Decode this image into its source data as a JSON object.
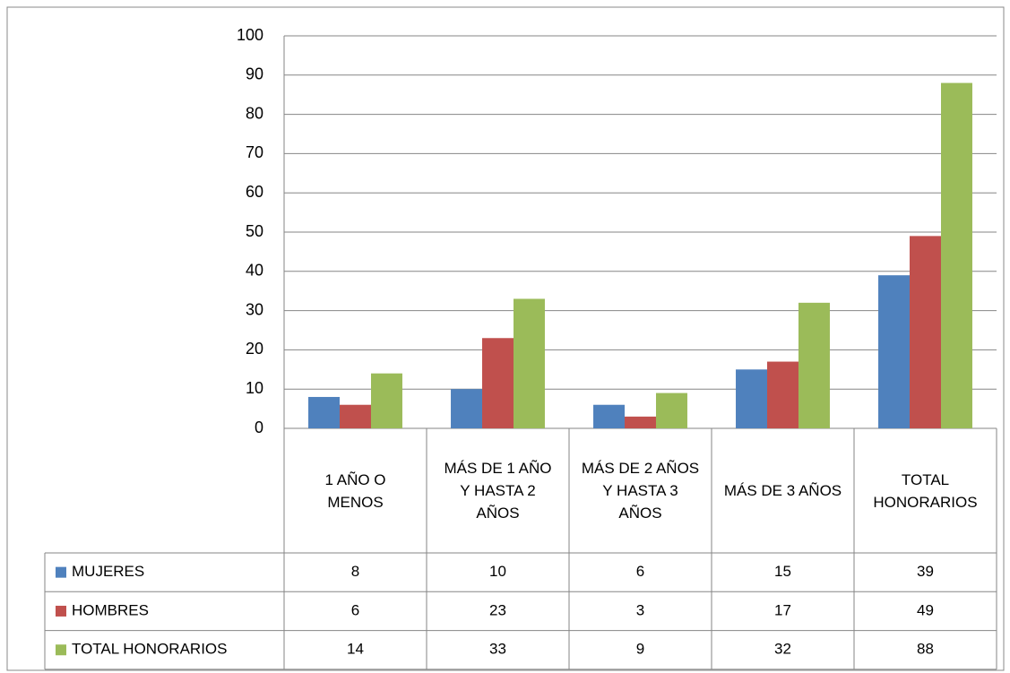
{
  "chart_data": {
    "type": "bar",
    "categories": [
      "1 AÑO O MENOS",
      "MÁS DE 1 AÑO Y HASTA 2 AÑOS",
      "MÁS DE 2 AÑOS Y HASTA 3 AÑOS",
      "MÁS DE 3 AÑOS",
      "TOTAL HONORARIOS"
    ],
    "series": [
      {
        "name": "MUJERES",
        "color": "#4f81bd",
        "values": [
          8,
          10,
          6,
          15,
          39
        ]
      },
      {
        "name": "HOMBRES",
        "color": "#c0504d",
        "values": [
          6,
          23,
          3,
          17,
          49
        ]
      },
      {
        "name": "TOTAL HONORARIOS",
        "color": "#9bbb59",
        "values": [
          14,
          33,
          9,
          32,
          88
        ]
      }
    ],
    "ylim": [
      0,
      100
    ],
    "yticks": [
      0,
      10,
      20,
      30,
      40,
      50,
      60,
      70,
      80,
      90,
      100
    ],
    "grid": true,
    "data_table": true
  }
}
